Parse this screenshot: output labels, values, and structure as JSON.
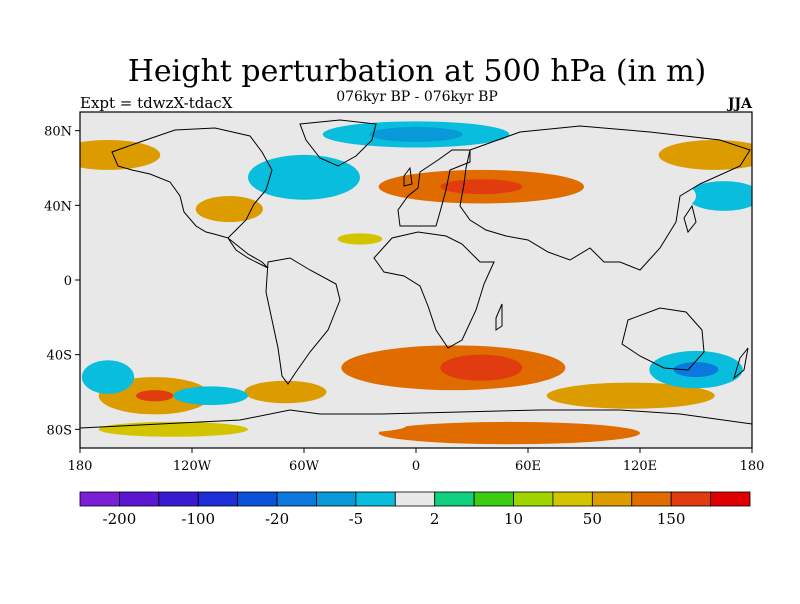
{
  "title": "Height perturbation at 500 hPa (in m)",
  "subtitle": "076kyr BP - 076kyr BP",
  "left_label": "Expt = tdwzX-tdacX",
  "right_label": "JJA",
  "map": {
    "lon_range": [
      -180,
      180
    ],
    "lat_range": [
      -90,
      90
    ],
    "lat_ticks": [
      {
        "value": 80,
        "label": "80N"
      },
      {
        "value": 40,
        "label": "40N"
      },
      {
        "value": 0,
        "label": "0"
      },
      {
        "value": -40,
        "label": "40S"
      },
      {
        "value": -80,
        "label": "80S"
      }
    ],
    "lon_ticks": [
      {
        "value": -180,
        "label": "180"
      },
      {
        "value": -120,
        "label": "120W"
      },
      {
        "value": -60,
        "label": "60W"
      },
      {
        "value": 0,
        "label": "0"
      },
      {
        "value": 60,
        "label": "60E"
      },
      {
        "value": 120,
        "label": "120E"
      },
      {
        "value": 180,
        "label": "180"
      }
    ],
    "background_color": "#e8e8e8",
    "contours": [
      {
        "lon": 20,
        "lat": -47,
        "rx": 60,
        "ry": 12,
        "bin": 14
      },
      {
        "lon": 35,
        "lat": -47,
        "rx": 22,
        "ry": 7,
        "bin": 15
      },
      {
        "lon": 35,
        "lat": 50,
        "rx": 55,
        "ry": 9,
        "bin": 14
      },
      {
        "lon": 35,
        "lat": 50,
        "rx": 22,
        "ry": 4,
        "bin": 15
      },
      {
        "lon": -165,
        "lat": 67,
        "rx": 28,
        "ry": 8,
        "bin": 13
      },
      {
        "lon": 160,
        "lat": 67,
        "rx": 30,
        "ry": 8,
        "bin": 13
      },
      {
        "lon": 115,
        "lat": -62,
        "rx": 45,
        "ry": 7,
        "bin": 13
      },
      {
        "lon": -140,
        "lat": -62,
        "rx": 30,
        "ry": 10,
        "bin": 13
      },
      {
        "lon": -140,
        "lat": -62,
        "rx": 10,
        "ry": 3,
        "bin": 15
      },
      {
        "lon": -70,
        "lat": -60,
        "rx": 22,
        "ry": 6,
        "bin": 13
      },
      {
        "lon": -100,
        "lat": 38,
        "rx": 18,
        "ry": 7,
        "bin": 13
      },
      {
        "lon": -30,
        "lat": 22,
        "rx": 12,
        "ry": 3,
        "bin": 12
      },
      {
        "lon": 50,
        "lat": -82,
        "rx": 70,
        "ry": 6,
        "bin": 14
      },
      {
        "lon": -130,
        "lat": -80,
        "rx": 40,
        "ry": 4,
        "bin": 12
      },
      {
        "lon": 0,
        "lat": 78,
        "rx": 50,
        "ry": 7,
        "bin": 7
      },
      {
        "lon": 0,
        "lat": 78,
        "rx": 25,
        "ry": 4,
        "bin": 6
      },
      {
        "lon": -60,
        "lat": 55,
        "rx": 30,
        "ry": 12,
        "bin": 7
      },
      {
        "lon": -160,
        "lat": 48,
        "rx": 25,
        "ry": 8,
        "bin": 8
      },
      {
        "lon": 165,
        "lat": 45,
        "rx": 20,
        "ry": 8,
        "bin": 7
      },
      {
        "lon": 150,
        "lat": -48,
        "rx": 25,
        "ry": 10,
        "bin": 7
      },
      {
        "lon": 150,
        "lat": -48,
        "rx": 12,
        "ry": 4,
        "bin": 5
      },
      {
        "lon": -165,
        "lat": -52,
        "rx": 14,
        "ry": 9,
        "bin": 7
      },
      {
        "lon": -110,
        "lat": -62,
        "rx": 20,
        "ry": 5,
        "bin": 7
      },
      {
        "lon": -130,
        "lat": -32,
        "rx": 20,
        "ry": 8,
        "bin": 8
      },
      {
        "lon": 15,
        "lat": -20,
        "rx": 15,
        "ry": 6,
        "bin": 8
      },
      {
        "lon": -90,
        "lat": -30,
        "rx": 15,
        "ry": 6,
        "bin": 8
      },
      {
        "lon": 130,
        "lat": -22,
        "rx": 20,
        "ry": 6,
        "bin": 8
      },
      {
        "lon": 125,
        "lat": 45,
        "rx": 25,
        "ry": 10,
        "bin": 8
      },
      {
        "lon": 110,
        "lat": 20,
        "rx": 15,
        "ry": 5,
        "bin": 8
      },
      {
        "lon": -40,
        "lat": -78,
        "rx": 35,
        "ry": 4,
        "bin": 8
      }
    ]
  },
  "colorbar": {
    "colors": [
      "#7a1fd6",
      "#5a16d0",
      "#3a1ad0",
      "#1c2ed6",
      "#0a52d8",
      "#0a78dc",
      "#089ad8",
      "#08bedc",
      "#e8e8e8",
      "#10d080",
      "#3ccc10",
      "#a0d400",
      "#d4c400",
      "#dc9c00",
      "#e06c00",
      "#e03c10",
      "#e00000"
    ],
    "labels": [
      {
        "boundary": 1,
        "text": "-200"
      },
      {
        "boundary": 3,
        "text": "-100"
      },
      {
        "boundary": 5,
        "text": "-20"
      },
      {
        "boundary": 7,
        "text": "-5"
      },
      {
        "boundary": 9,
        "text": "2"
      },
      {
        "boundary": 11,
        "text": "10"
      },
      {
        "boundary": 13,
        "text": "50"
      },
      {
        "boundary": 15,
        "text": "150"
      }
    ]
  }
}
